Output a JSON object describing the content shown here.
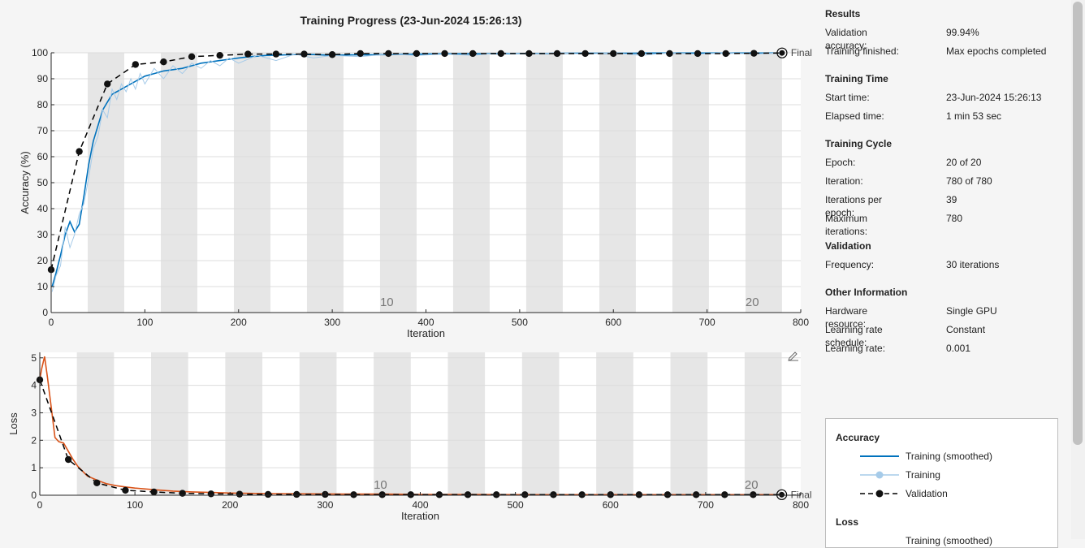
{
  "chart_data": [
    {
      "type": "line",
      "title": "Training Progress (23-Jun-2024 15:26:13)",
      "xlabel": "Iteration",
      "ylabel": "Accuracy (%)",
      "xlim": [
        0,
        800
      ],
      "ylim": [
        0,
        100
      ],
      "xticks": [
        0,
        100,
        200,
        300,
        400,
        500,
        600,
        700,
        800
      ],
      "yticks": [
        0,
        10,
        20,
        30,
        40,
        50,
        60,
        70,
        80,
        90,
        100
      ],
      "grid": true,
      "epoch_markers": [
        {
          "x": 351,
          "label": "10"
        },
        {
          "x": 741,
          "label": "20"
        }
      ],
      "final_label": "Final",
      "series": [
        {
          "name": "Training (smoothed)",
          "x": [
            1,
            5,
            10,
            15,
            20,
            25,
            30,
            35,
            40,
            45,
            50,
            55,
            60,
            65,
            70,
            75,
            80,
            90,
            100,
            110,
            120,
            130,
            140,
            150,
            160,
            170,
            180,
            190,
            200,
            210,
            220,
            230,
            240,
            250,
            260,
            280,
            300,
            320,
            340,
            360,
            380,
            400,
            420,
            440,
            460,
            480,
            500,
            520,
            540,
            560,
            580,
            600,
            620,
            640,
            660,
            680,
            700,
            720,
            740,
            760,
            780
          ],
          "y": [
            10,
            15,
            22,
            30,
            35,
            31,
            34,
            45,
            57,
            66,
            72,
            78,
            81,
            84,
            85,
            86,
            87,
            89,
            91,
            92,
            93,
            93.5,
            94,
            95,
            96,
            96.5,
            97,
            97.5,
            98,
            98.4,
            98.7,
            99,
            99.1,
            99.2,
            99.3,
            99.3,
            99,
            99.2,
            99.2,
            99.3,
            99.4,
            99.5,
            99.6,
            99.6,
            99.6,
            99.7,
            99.7,
            99.7,
            99.8,
            99.8,
            99.8,
            99.8,
            99.8,
            99.9,
            99.9,
            99.9,
            99.9,
            99.9,
            99.9,
            99.9,
            99.9
          ]
        },
        {
          "name": "Training",
          "x": [
            1,
            5,
            10,
            15,
            20,
            25,
            30,
            35,
            40,
            45,
            50,
            55,
            60,
            65,
            70,
            75,
            80,
            85,
            90,
            95,
            100,
            110,
            120,
            130,
            140,
            150,
            160,
            170,
            180,
            190,
            200,
            220,
            240,
            260,
            280,
            300,
            330,
            360,
            390,
            420,
            450,
            480,
            510,
            540,
            570,
            600,
            630,
            660,
            690,
            720,
            750,
            780
          ],
          "y": [
            8,
            14,
            18,
            33,
            25,
            30,
            38,
            42,
            52,
            63,
            68,
            78,
            75,
            86,
            82,
            88,
            85,
            90,
            86,
            92,
            88,
            94,
            90,
            95,
            92,
            96,
            94,
            97,
            95,
            98,
            96,
            99,
            97,
            99.5,
            98,
            99,
            98.5,
            99.5,
            99,
            99.5,
            99,
            100,
            99.5,
            100,
            99.5,
            100,
            99,
            100,
            99.5,
            100,
            99.5,
            100
          ]
        },
        {
          "name": "Validation",
          "x": [
            0,
            30,
            60,
            90,
            120,
            150,
            180,
            210,
            240,
            270,
            300,
            330,
            360,
            390,
            420,
            450,
            480,
            510,
            540,
            570,
            600,
            630,
            660,
            690,
            720,
            750,
            780
          ],
          "y": [
            16.5,
            62,
            88,
            95.5,
            96.5,
            98.5,
            99,
            99.5,
            99.5,
            99.5,
            99.3,
            99.7,
            99.7,
            99.7,
            99.7,
            99.7,
            99.7,
            99.7,
            99.7,
            99.7,
            99.7,
            99.7,
            99.7,
            99.7,
            99.7,
            99.8,
            99.94
          ]
        }
      ]
    },
    {
      "type": "line",
      "xlabel": "Iteration",
      "ylabel": "Loss",
      "xlim": [
        0,
        800
      ],
      "ylim": [
        0,
        5.2
      ],
      "xticks": [
        0,
        100,
        200,
        300,
        400,
        500,
        600,
        700,
        800
      ],
      "yticks": [
        0,
        1,
        2,
        3,
        4,
        5
      ],
      "grid": true,
      "epoch_markers": [
        {
          "x": 351,
          "label": "10"
        },
        {
          "x": 741,
          "label": "20"
        }
      ],
      "final_label": "Final",
      "series": [
        {
          "name": "Training (smoothed)",
          "x": [
            0,
            2,
            5,
            8,
            12,
            16,
            20,
            25,
            30,
            35,
            40,
            50,
            60,
            70,
            80,
            90,
            100,
            120,
            140,
            160,
            180,
            200,
            240,
            280,
            320,
            360,
            400,
            450,
            500,
            600,
            700,
            780
          ],
          "y": [
            4.2,
            4.6,
            5.05,
            4.3,
            3.2,
            2.1,
            1.95,
            1.9,
            1.6,
            1.3,
            1.05,
            0.7,
            0.55,
            0.42,
            0.35,
            0.3,
            0.26,
            0.2,
            0.15,
            0.12,
            0.1,
            0.08,
            0.06,
            0.05,
            0.04,
            0.04,
            0.03,
            0.03,
            0.02,
            0.02,
            0.02,
            0.02
          ]
        },
        {
          "name": "Validation",
          "x": [
            0,
            30,
            60,
            90,
            120,
            150,
            180,
            210,
            240,
            270,
            300,
            330,
            360,
            390,
            420,
            450,
            480,
            510,
            540,
            570,
            600,
            630,
            660,
            690,
            720,
            750,
            780
          ],
          "y": [
            4.2,
            1.3,
            0.45,
            0.18,
            0.12,
            0.07,
            0.05,
            0.04,
            0.03,
            0.03,
            0.03,
            0.02,
            0.02,
            0.02,
            0.02,
            0.02,
            0.02,
            0.02,
            0.02,
            0.02,
            0.02,
            0.02,
            0.02,
            0.02,
            0.02,
            0.02,
            0.02
          ]
        }
      ]
    }
  ],
  "colors": {
    "smoothed_acc": "#0072bd",
    "training_raw": "#a6cbe9",
    "loss_line": "#d95319",
    "validation": "#000000",
    "epoch_band": "#e6e6e6"
  },
  "icons": {
    "plot_edit": "pencil-icon"
  },
  "panel": {
    "sections": [
      {
        "title": "Results",
        "rows": [
          {
            "k": "Validation accuracy:",
            "v": "99.94%"
          },
          {
            "k": "Training finished:",
            "v": "Max epochs completed"
          }
        ]
      },
      {
        "title": "Training Time",
        "rows": [
          {
            "k": "Start time:",
            "v": "23-Jun-2024 15:26:13"
          },
          {
            "k": "Elapsed time:",
            "v": "1 min 53 sec"
          }
        ]
      },
      {
        "title": "Training Cycle",
        "rows": [
          {
            "k": "Epoch:",
            "v": "20 of 20"
          },
          {
            "k": "Iteration:",
            "v": "780 of 780"
          },
          {
            "k": "Iterations per epoch:",
            "v": "39"
          },
          {
            "k": "Maximum iterations:",
            "v": "780"
          }
        ]
      },
      {
        "title": "Validation",
        "rows": [
          {
            "k": "Frequency:",
            "v": "30 iterations"
          }
        ]
      },
      {
        "title": "Other Information",
        "rows": [
          {
            "k": "Hardware resource:",
            "v": "Single GPU"
          },
          {
            "k": "Learning rate schedule:",
            "v": "Constant"
          },
          {
            "k": "Learning rate:",
            "v": "0.001"
          }
        ]
      }
    ]
  },
  "legend": {
    "accuracy_title": "Accuracy",
    "items": [
      "Training (smoothed)",
      "Training",
      "Validation"
    ],
    "loss_title": "Loss",
    "loss_first_item": "Training (smoothed)"
  }
}
